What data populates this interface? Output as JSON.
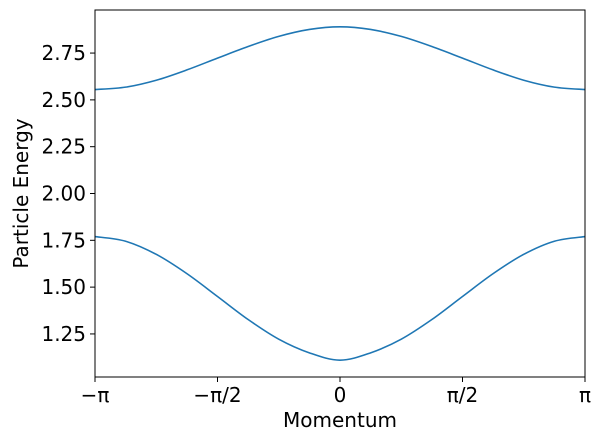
{
  "chart_data": {
    "type": "line",
    "title": "",
    "xlabel": "Momentum",
    "ylabel": "Particle Energy",
    "xlim": [
      -3.14159265,
      3.14159265
    ],
    "ylim": [
      1.02,
      2.98
    ],
    "grid": false,
    "line_color": "#1f77b4",
    "x_ticks": [
      {
        "value": -3.14159265,
        "label": "−π"
      },
      {
        "value": -1.57079633,
        "label": "−π/2"
      },
      {
        "value": 0,
        "label": "0"
      },
      {
        "value": 1.57079633,
        "label": "π/2"
      },
      {
        "value": 3.14159265,
        "label": "π"
      }
    ],
    "y_ticks": [
      {
        "value": 1.25,
        "label": "1.25"
      },
      {
        "value": 1.5,
        "label": "1.50"
      },
      {
        "value": 1.75,
        "label": "1.75"
      },
      {
        "value": 2.0,
        "label": "2.00"
      },
      {
        "value": 2.25,
        "label": "2.25"
      },
      {
        "value": 2.5,
        "label": "2.50"
      },
      {
        "value": 2.75,
        "label": "2.75"
      }
    ],
    "series": [
      {
        "x": [
          -3.1416,
          -2.7489,
          -2.3562,
          -1.9635,
          -1.5708,
          -1.1781,
          -0.7854,
          -0.3927,
          0,
          0.3927,
          0.7854,
          1.1781,
          1.5708,
          1.9635,
          2.3562,
          2.7489,
          3.1416
        ],
        "values": [
          2.555,
          2.568,
          2.605,
          2.66,
          2.723,
          2.785,
          2.839,
          2.876,
          2.89,
          2.876,
          2.839,
          2.785,
          2.723,
          2.66,
          2.605,
          2.568,
          2.555
        ]
      },
      {
        "x": [
          -3.1416,
          -2.7489,
          -2.3562,
          -1.9635,
          -1.5708,
          -1.1781,
          -0.7854,
          -0.3927,
          0,
          0.3927,
          0.7854,
          1.1781,
          1.5708,
          1.9635,
          2.3562,
          2.7489,
          3.1416
        ],
        "values": [
          1.77,
          1.745,
          1.675,
          1.572,
          1.45,
          1.327,
          1.222,
          1.149,
          1.11,
          1.149,
          1.222,
          1.327,
          1.45,
          1.572,
          1.675,
          1.745,
          1.77
        ]
      }
    ]
  }
}
